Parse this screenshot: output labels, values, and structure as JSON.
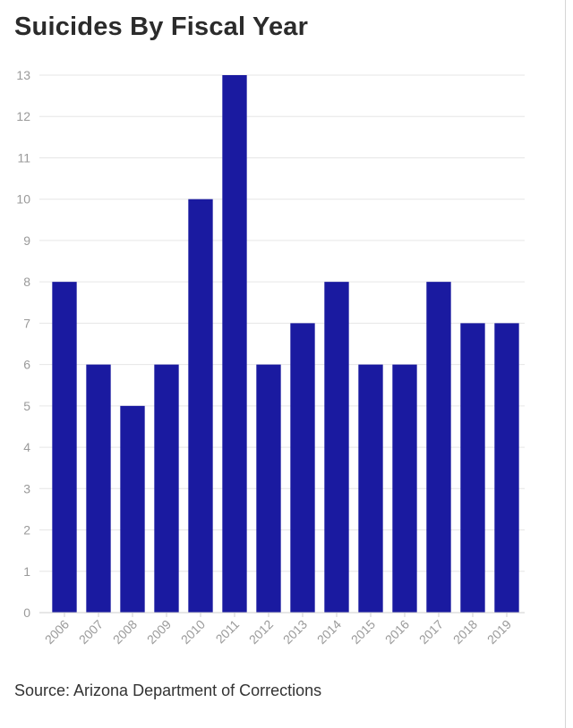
{
  "title": "Suicides By Fiscal Year",
  "source": "Source: Arizona Department of Corrections",
  "colors": {
    "bar": "#1a1aa0",
    "grid": "#e6e6e6",
    "tick_text": "#9a9a9a",
    "title": "#2b2b2b"
  },
  "chart_data": {
    "type": "bar",
    "title": "Suicides By Fiscal Year",
    "categories": [
      "2006",
      "2007",
      "2008",
      "2009",
      "2010",
      "2011",
      "2012",
      "2013",
      "2014",
      "2015",
      "2016",
      "2017",
      "2018",
      "2019"
    ],
    "values": [
      8,
      6,
      5,
      6,
      10,
      13,
      6,
      7,
      8,
      6,
      6,
      8,
      7,
      7
    ],
    "xlabel": "",
    "ylabel": "",
    "ylim": [
      0,
      13
    ],
    "yticks": [
      0,
      1,
      2,
      3,
      4,
      5,
      6,
      7,
      8,
      9,
      10,
      11,
      12,
      13
    ],
    "grid": true,
    "legend": "none"
  }
}
